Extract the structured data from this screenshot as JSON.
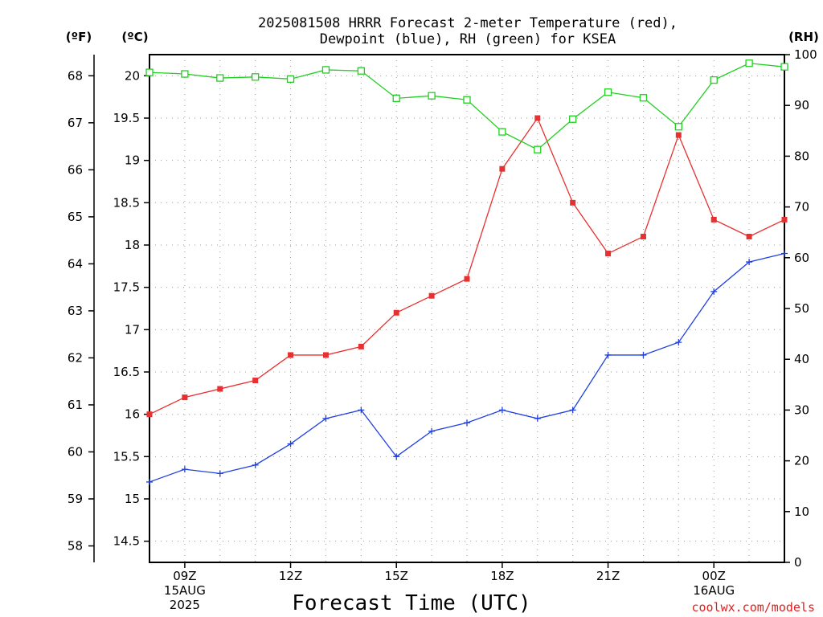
{
  "title_lines": [
    "2025081508 HRRR Forecast 2-meter Temperature (red),",
    "Dewpoint (blue), RH (green) for KSEA"
  ],
  "credit": "coolwx.com/models",
  "colors": {
    "temperature": "#e83030",
    "dewpoint": "#2040e0",
    "rh": "#20d020",
    "credit": "#e02020"
  },
  "chart_data": {
    "type": "line",
    "xlabel": "Forecast Time (UTC)",
    "x_label_groups": [
      {
        "hour": 9,
        "lines": [
          "09Z",
          "15AUG",
          "2025"
        ]
      },
      {
        "hour": 12,
        "lines": [
          "12Z"
        ]
      },
      {
        "hour": 15,
        "lines": [
          "15Z"
        ]
      },
      {
        "hour": 18,
        "lines": [
          "18Z"
        ]
      },
      {
        "hour": 21,
        "lines": [
          "21Z"
        ]
      },
      {
        "hour": 24,
        "lines": [
          "00Z",
          "16AUG"
        ]
      }
    ],
    "x_hours_utc": [
      8,
      9,
      10,
      11,
      12,
      13,
      14,
      15,
      16,
      17,
      18,
      19,
      20,
      21,
      22,
      23,
      24,
      25,
      26
    ],
    "xlim_hours": [
      8,
      26
    ],
    "left_axis_f": {
      "label": "(ºF)",
      "ticks": [
        "58",
        "59",
        "60",
        "61",
        "62",
        "63",
        "64",
        "65",
        "66",
        "67",
        "68"
      ]
    },
    "left_axis_c": {
      "label": "(ºC)",
      "ylim": [
        14.25,
        20.25
      ],
      "ticks": [
        "14.5",
        "15",
        "15.5",
        "16",
        "16.5",
        "17",
        "17.5",
        "18",
        "18.5",
        "19",
        "19.5",
        "20"
      ]
    },
    "right_axis_rh": {
      "label": "(RH)",
      "ylim": [
        0,
        100
      ],
      "ticks": [
        "0",
        "10",
        "20",
        "30",
        "40",
        "50",
        "60",
        "70",
        "80",
        "90",
        "100"
      ]
    },
    "grid": true,
    "series": [
      {
        "name": "Temperature",
        "axis": "c",
        "marker": "filled-square",
        "color": "#e83030",
        "values": [
          16.0,
          16.2,
          16.3,
          16.4,
          16.7,
          16.7,
          16.8,
          17.2,
          17.4,
          17.6,
          18.9,
          19.5,
          18.5,
          17.9,
          18.1,
          19.3,
          18.3,
          18.1,
          18.3
        ]
      },
      {
        "name": "Dewpoint",
        "axis": "c",
        "marker": "plus",
        "color": "#2040e0",
        "values": [
          15.2,
          15.35,
          15.3,
          15.4,
          15.65,
          15.95,
          16.05,
          15.5,
          15.8,
          15.9,
          16.05,
          15.95,
          16.05,
          16.7,
          16.7,
          16.85,
          17.45,
          17.8,
          17.9
        ]
      },
      {
        "name": "RH",
        "axis": "rh",
        "marker": "open-square",
        "color": "#20d020",
        "values": [
          96.5,
          96.2,
          95.4,
          95.6,
          95.2,
          97.0,
          96.8,
          91.4,
          91.9,
          91.1,
          84.8,
          81.3,
          87.3,
          92.6,
          91.5,
          85.8,
          95.0,
          98.3,
          97.6
        ]
      }
    ]
  }
}
